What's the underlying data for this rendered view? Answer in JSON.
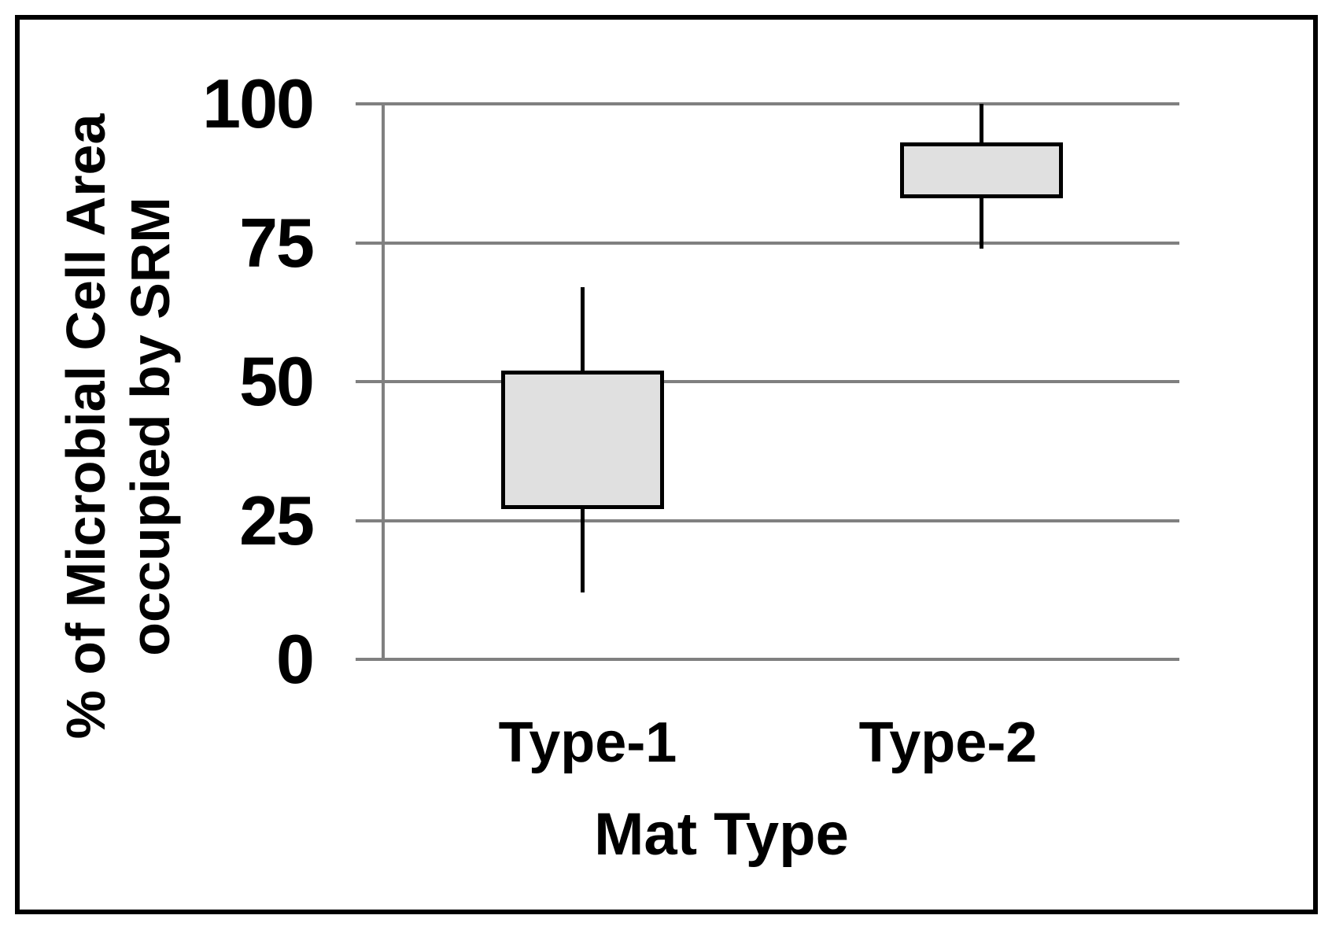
{
  "chart_data": {
    "type": "box",
    "title": "",
    "xlabel": "Mat Type",
    "ylabel_lines": [
      "% of Microbial Cell Area",
      "occupied by SRM"
    ],
    "ylim": [
      0,
      100
    ],
    "yticks": [
      0,
      25,
      50,
      75,
      100
    ],
    "grid": "horizontal",
    "legend": "none",
    "median_shown": false,
    "categories": [
      "Type-1",
      "Type-2"
    ],
    "series": [
      {
        "name": "Type-1",
        "whisker_low": 12,
        "q1": 27,
        "q3": 52,
        "whisker_high": 67
      },
      {
        "name": "Type-2",
        "whisker_low": 74,
        "q1": 83,
        "q3": 93,
        "whisker_high": 100
      }
    ],
    "colors": {
      "background": "#ffffff",
      "frame_border": "#000000",
      "gridline": "#808080",
      "axis": "#808080",
      "box_fill": "#e0e0e0",
      "box_border": "#000000",
      "whisker": "#000000",
      "text": "#000000"
    }
  }
}
